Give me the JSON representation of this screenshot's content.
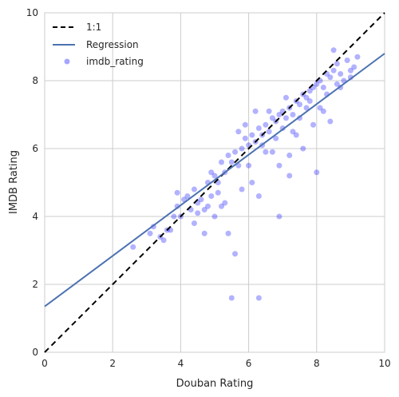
{
  "chart_data": {
    "type": "scatter",
    "xlabel": "Douban Rating",
    "ylabel": "IMDB Rating",
    "xlim": [
      0,
      10
    ],
    "ylim": [
      0,
      10
    ],
    "xticks": [
      "0",
      "2",
      "4",
      "6",
      "8",
      "10"
    ],
    "yticks": [
      "0",
      "2",
      "4",
      "6",
      "8",
      "10"
    ],
    "grid": true,
    "legend_position": "top-left",
    "legend": [
      "1:1",
      "Regression",
      "imdb_rating"
    ],
    "series": [
      {
        "name": "1:1",
        "kind": "line",
        "style": "dashed",
        "color": "#000000",
        "x": [
          0,
          10
        ],
        "y": [
          0,
          10
        ]
      },
      {
        "name": "Regression",
        "kind": "line",
        "style": "solid",
        "color": "#4c72b0",
        "x": [
          0,
          10
        ],
        "y": [
          1.35,
          8.8
        ]
      },
      {
        "name": "imdb_rating",
        "kind": "scatter",
        "color": "#0000ff",
        "opacity": 0.3,
        "x": [
          2.6,
          3.1,
          3.4,
          3.5,
          3.6,
          3.8,
          3.9,
          4.0,
          4.1,
          4.2,
          4.3,
          4.4,
          4.5,
          4.6,
          4.7,
          4.8,
          4.9,
          5.0,
          5.1,
          5.2,
          5.3,
          5.4,
          5.5,
          5.6,
          5.7,
          5.8,
          5.9,
          6.0,
          6.1,
          6.2,
          6.3,
          6.4,
          6.5,
          6.6,
          6.7,
          6.8,
          6.9,
          7.0,
          7.1,
          7.2,
          7.3,
          7.4,
          7.5,
          7.6,
          7.7,
          7.8,
          7.9,
          8.0,
          8.1,
          8.2,
          8.3,
          8.4,
          8.5,
          8.6,
          8.7,
          8.8,
          8.9,
          9.0,
          9.1,
          9.2,
          5.5,
          5.6,
          6.3,
          5.4,
          4.7,
          3.7,
          4.5,
          5.0,
          3.2,
          3.9,
          8.0,
          7.2,
          6.9,
          6.1,
          5.8,
          6.7,
          7.6,
          8.4,
          7.9,
          6.6,
          5.9,
          6.8,
          7.3,
          7.8,
          8.2,
          8.7,
          6.2,
          6.5,
          7.0,
          7.5,
          8.1,
          5.7,
          6.0,
          6.4,
          7.1,
          7.4,
          7.7,
          8.3,
          8.6,
          9.0,
          5.2,
          4.4,
          4.9,
          5.3,
          6.9,
          6.3,
          7.2,
          5.1,
          4.8,
          8.5
        ],
        "y": [
          3.1,
          3.5,
          3.4,
          3.3,
          3.6,
          4.0,
          4.3,
          4.0,
          4.5,
          4.6,
          4.2,
          4.8,
          4.1,
          4.5,
          4.2,
          5.0,
          4.6,
          5.2,
          5.0,
          5.6,
          5.3,
          5.8,
          5.6,
          5.9,
          5.5,
          6.0,
          6.3,
          6.1,
          6.4,
          6.2,
          6.6,
          6.4,
          6.7,
          6.5,
          6.9,
          6.8,
          7.0,
          7.1,
          6.9,
          7.2,
          7.0,
          7.4,
          7.3,
          7.6,
          7.5,
          7.7,
          7.8,
          7.9,
          8.0,
          7.8,
          8.2,
          8.1,
          8.3,
          8.5,
          8.2,
          8.0,
          8.6,
          8.3,
          8.4,
          8.7,
          1.6,
          2.9,
          1.6,
          3.5,
          3.5,
          3.6,
          4.4,
          4.0,
          3.7,
          4.7,
          5.3,
          5.2,
          5.5,
          5.0,
          4.8,
          5.9,
          6.0,
          6.8,
          6.7,
          7.1,
          6.7,
          6.3,
          6.5,
          7.4,
          7.1,
          7.8,
          7.1,
          5.9,
          6.6,
          6.9,
          7.2,
          6.5,
          5.5,
          6.1,
          7.5,
          6.4,
          7.2,
          7.6,
          7.9,
          8.1,
          4.3,
          3.8,
          5.3,
          4.4,
          4.0,
          4.6,
          5.8,
          4.7,
          4.3,
          8.9
        ]
      }
    ]
  }
}
